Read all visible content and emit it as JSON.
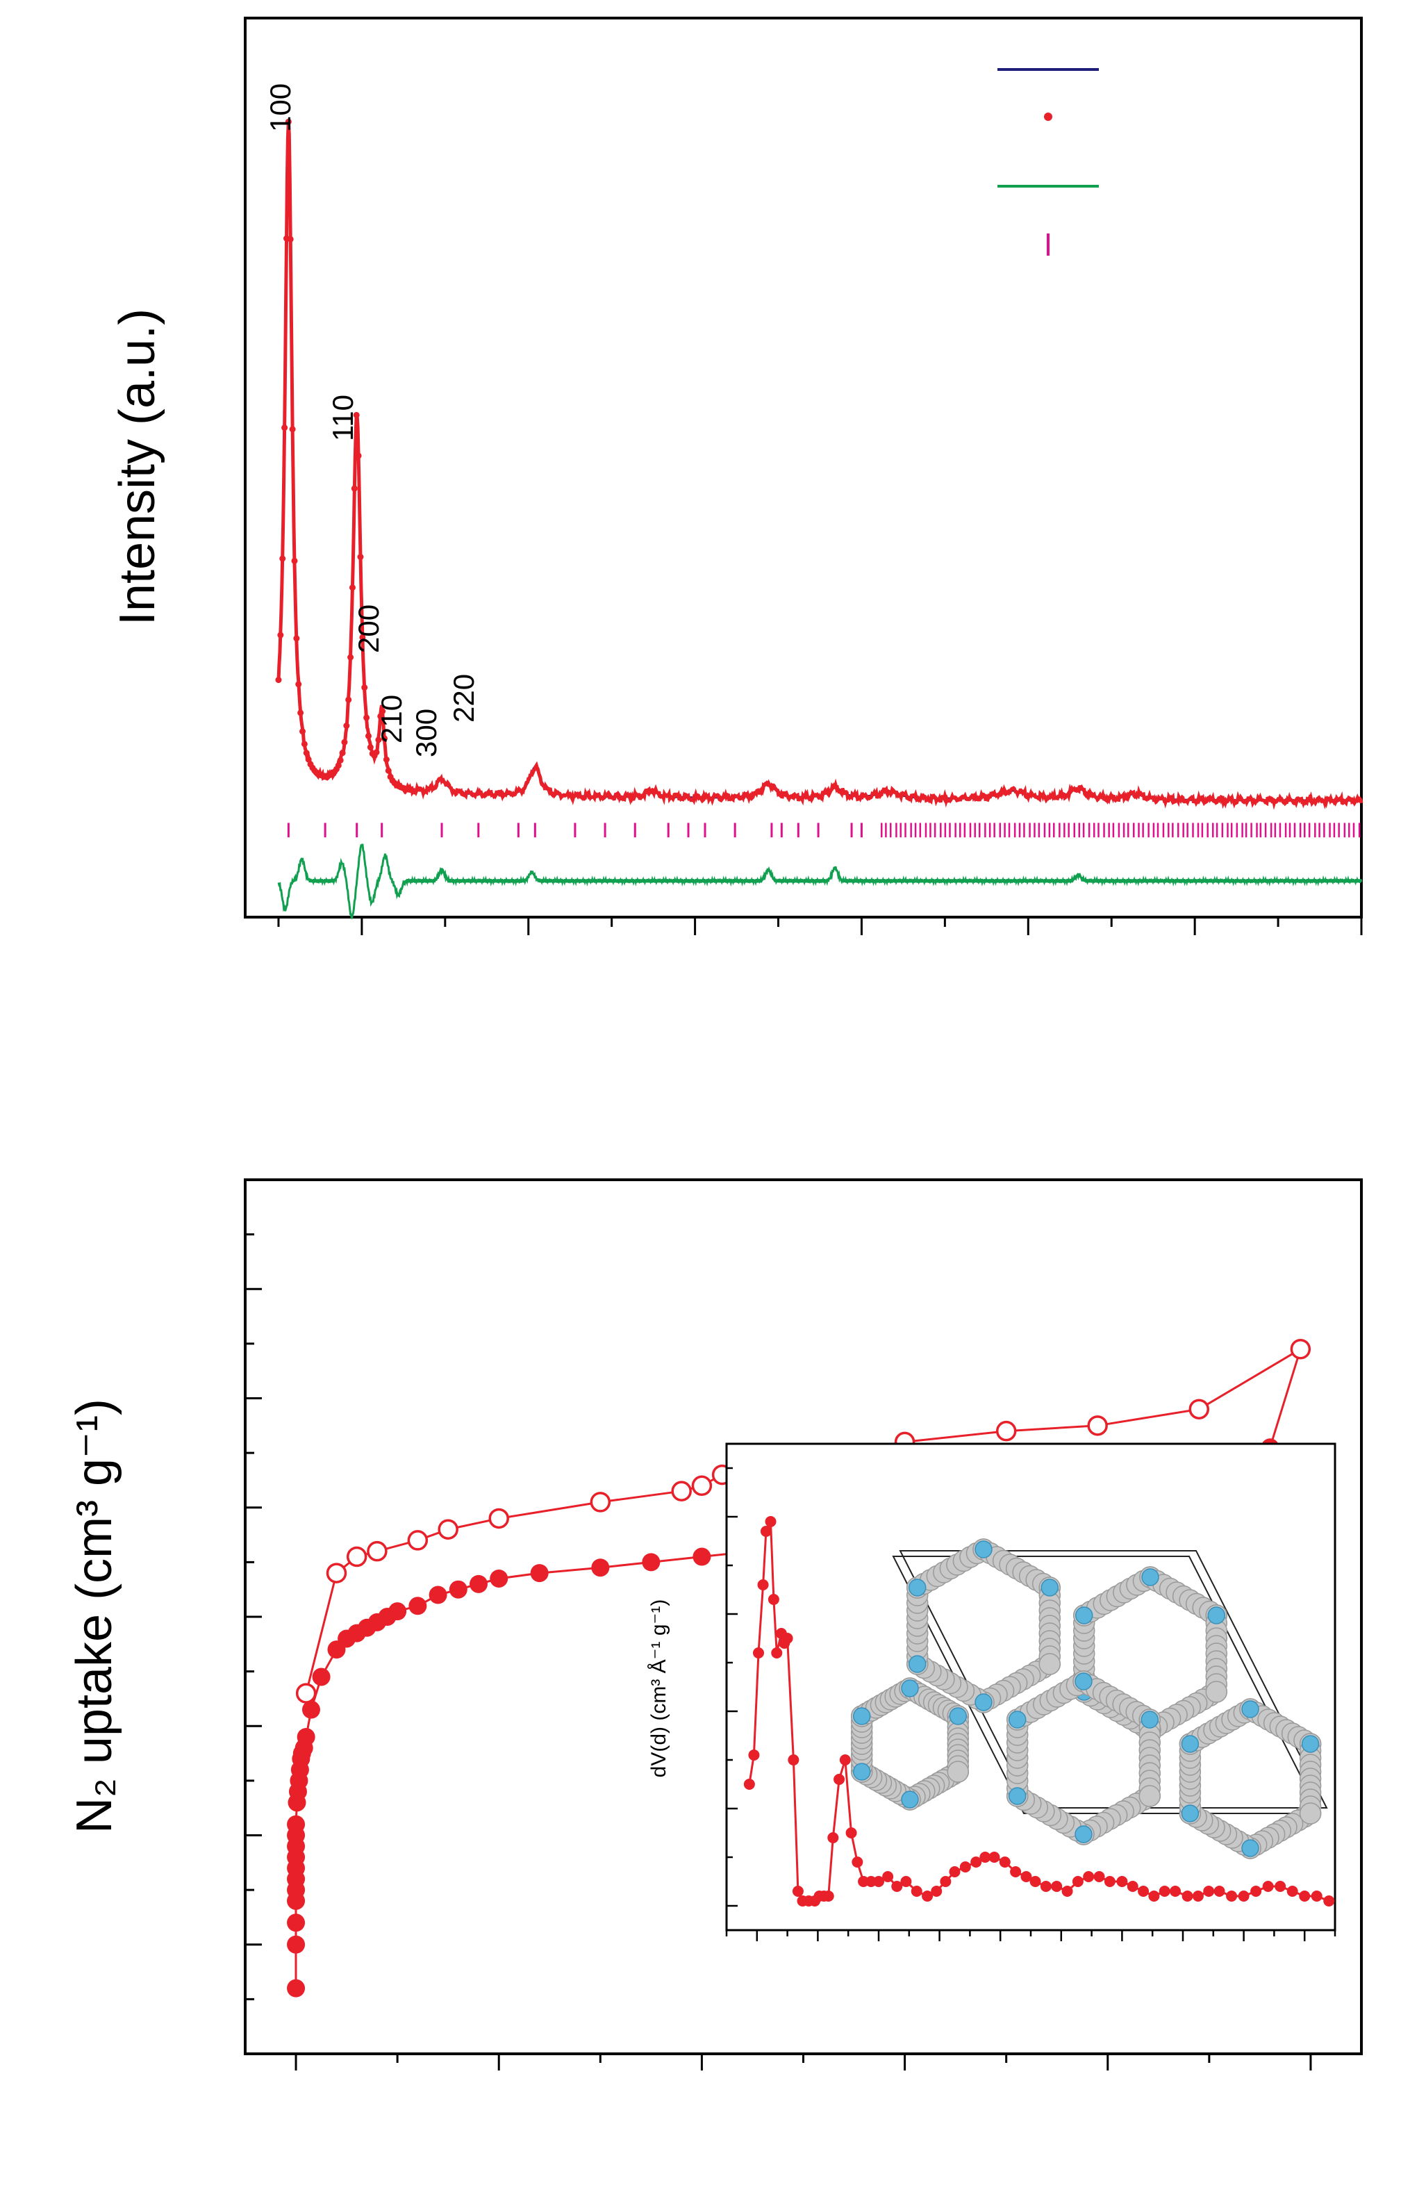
{
  "colors": {
    "calc": "#1e1e78",
    "obs": "#e8202a",
    "diff": "#10a050",
    "bragg": "#e0108c",
    "frame": "#000000",
    "atom": "#c8c8c8",
    "nitrogen": "#5ab4dc"
  },
  "chart_data": [
    {
      "id": "pxrd",
      "type": "line",
      "ylabel": "Intensity (a.u.)",
      "xlim": [
        1.5,
        35
      ],
      "ylim": [
        -0.16,
        1.08
      ],
      "x_ticks_major": [
        5,
        10,
        15,
        20,
        25,
        30,
        35
      ],
      "x_ticks_minor": [
        2.5,
        7.5,
        12.5,
        17.5,
        22.5,
        27.5,
        32.5
      ],
      "legend": {
        "position": "top-right",
        "entries": [
          {
            "style": "line",
            "color": "#1e1e78"
          },
          {
            "style": "dot",
            "color": "#e8202a"
          },
          {
            "style": "line",
            "color": "#10a050"
          },
          {
            "style": "tick",
            "color": "#e0108c"
          }
        ]
      },
      "peak_labels": [
        {
          "text": "100",
          "x": 2.8,
          "y": 1.0
        },
        {
          "text": "110",
          "x": 4.8,
          "y": 0.6
        },
        {
          "text": "200",
          "x": 5.5,
          "y": 0.31
        },
        {
          "text": "210",
          "x": 7.2,
          "y": 0.12
        },
        {
          "text": "300",
          "x": 8.5,
          "y": 0.1
        },
        {
          "text": "220",
          "x": 10.0,
          "y": 0.13
        }
      ],
      "observed_peaks": [
        {
          "x": 2.8,
          "height": 0.92,
          "width": 0.13
        },
        {
          "x": 4.85,
          "height": 0.52,
          "width": 0.14
        },
        {
          "x": 5.6,
          "height": 0.1,
          "width": 0.1
        },
        {
          "x": 7.4,
          "height": 0.02,
          "width": 0.2
        },
        {
          "x": 10.2,
          "height": 0.04,
          "width": 0.2
        },
        {
          "x": 13.7,
          "height": 0.01,
          "width": 0.2
        },
        {
          "x": 17.2,
          "height": 0.02,
          "width": 0.25
        },
        {
          "x": 19.2,
          "height": 0.015,
          "width": 0.25
        },
        {
          "x": 20.8,
          "height": 0.01,
          "width": 0.4
        },
        {
          "x": 24.5,
          "height": 0.012,
          "width": 0.5
        },
        {
          "x": 26.5,
          "height": 0.015,
          "width": 0.3
        },
        {
          "x": 28.2,
          "height": 0.008,
          "width": 0.3
        }
      ],
      "bragg_ticks_x": [
        2.8,
        3.9,
        4.85,
        5.6,
        7.4,
        8.5,
        9.7,
        10.2,
        11.4,
        12.3,
        13.2,
        14.2,
        14.8,
        15.3,
        16.2,
        17.3,
        17.6,
        18.1,
        18.7,
        19.7,
        20.0
      ],
      "bragg_dense_range": [
        20.6,
        35
      ],
      "diff_wiggles": [
        {
          "x": 2.7,
          "amp": -0.04
        },
        {
          "x": 3.2,
          "amp": 0.03
        },
        {
          "x": 4.4,
          "amp": 0.025
        },
        {
          "x": 4.7,
          "amp": -0.05
        },
        {
          "x": 5.0,
          "amp": 0.05
        },
        {
          "x": 5.3,
          "amp": -0.03
        },
        {
          "x": 5.7,
          "amp": 0.035
        },
        {
          "x": 6.1,
          "amp": -0.02
        },
        {
          "x": 7.4,
          "amp": 0.015
        },
        {
          "x": 10.1,
          "amp": 0.012
        },
        {
          "x": 17.2,
          "amp": 0.015
        },
        {
          "x": 19.2,
          "amp": 0.018
        },
        {
          "x": 26.5,
          "amp": 0.008
        }
      ]
    },
    {
      "id": "n2-isotherm",
      "type": "scatter",
      "ylabel": "N₂ uptake (cm³ g⁻¹)",
      "xlim": [
        -0.05,
        1.05
      ],
      "ylim": [
        0,
        800
      ],
      "x_ticks_major": [
        0,
        0.2,
        0.4,
        0.6,
        0.8,
        1.0
      ],
      "x_ticks_minor": [
        0.1,
        0.3,
        0.5,
        0.7,
        0.9
      ],
      "y_ticks_major": [
        100,
        200,
        300,
        400,
        500,
        600,
        700
      ],
      "y_ticks_minor": [
        50,
        150,
        250,
        350,
        450,
        550,
        650,
        750
      ],
      "series": [
        {
          "marker": "filled-circle",
          "x": [
            0.0,
            0.0,
            0.0,
            0.0,
            0.0,
            0.0,
            0.0,
            0.0,
            0.0,
            0.0,
            0.0,
            0.001,
            0.002,
            0.003,
            0.004,
            0.005,
            0.006,
            0.008,
            0.01,
            0.015,
            0.025,
            0.04,
            0.05,
            0.06,
            0.07,
            0.08,
            0.09,
            0.1,
            0.12,
            0.14,
            0.16,
            0.18,
            0.2,
            0.24,
            0.3,
            0.35,
            0.4,
            0.45,
            0.5,
            0.55,
            0.6,
            0.65,
            0.7,
            0.75,
            0.8,
            0.85,
            0.89,
            0.93,
            0.96
          ],
          "y": [
            60,
            100,
            120,
            140,
            150,
            160,
            170,
            180,
            190,
            200,
            210,
            230,
            240,
            250,
            260,
            270,
            275,
            280,
            290,
            315,
            345,
            370,
            380,
            385,
            390,
            395,
            400,
            405,
            410,
            420,
            425,
            430,
            435,
            440,
            445,
            450,
            455,
            460,
            465,
            470,
            475,
            480,
            485,
            490,
            497,
            505,
            515,
            530,
            555
          ]
        },
        {
          "marker": "open-circle",
          "x": [
            0.99,
            0.89,
            0.79,
            0.7,
            0.6,
            0.5,
            0.45,
            0.42,
            0.4,
            0.38,
            0.3,
            0.2,
            0.15,
            0.12,
            0.08,
            0.06,
            0.04,
            0.01
          ],
          "y": [
            645,
            590,
            575,
            570,
            560,
            545,
            535,
            530,
            520,
            515,
            505,
            490,
            480,
            470,
            460,
            455,
            440,
            330
          ]
        }
      ]
    },
    {
      "id": "pore-size-distribution",
      "type": "line",
      "ylabel": "dV(d) (cm³ Å⁻¹ g⁻¹)",
      "xlim": [
        0,
        40
      ],
      "ylim": [
        0,
        1
      ],
      "x_ticks_major": [
        2,
        6,
        10,
        14,
        18,
        22,
        26,
        30,
        34,
        38
      ],
      "x_ticks_minor": [
        0,
        4,
        8,
        12,
        16,
        20,
        24,
        28,
        32,
        36,
        40
      ],
      "y_ticks_major": [
        0.05,
        0.25,
        0.45,
        0.65,
        0.85
      ],
      "y_ticks_minor": [
        0.15,
        0.35,
        0.55,
        0.75,
        0.95
      ],
      "x": [
        1.5,
        1.8,
        2.1,
        2.4,
        2.6,
        2.9,
        3.1,
        3.3,
        3.6,
        3.8,
        4.0,
        4.4,
        4.7,
        5.0,
        5.4,
        5.8,
        6.1,
        6.4,
        6.7,
        7.0,
        7.4,
        7.8,
        8.2,
        8.6,
        9.0,
        9.5,
        10.0,
        10.6,
        11.2,
        11.8,
        12.5,
        13.2,
        13.8,
        14.4,
        15.0,
        15.7,
        16.4,
        17.0,
        17.6,
        18.3,
        19.0,
        19.7,
        20.3,
        21.0,
        21.7,
        22.4,
        23.1,
        23.8,
        24.5,
        25.2,
        26.0,
        26.7,
        27.4,
        28.1,
        28.8,
        29.5,
        30.3,
        31.0,
        31.7,
        32.4,
        33.2,
        34.0,
        34.8,
        35.6,
        36.4,
        37.2,
        38.0,
        38.8,
        39.6
      ],
      "y": [
        0.3,
        0.36,
        0.57,
        0.71,
        0.82,
        0.84,
        0.68,
        0.57,
        0.61,
        0.59,
        0.6,
        0.35,
        0.08,
        0.06,
        0.06,
        0.06,
        0.07,
        0.07,
        0.07,
        0.19,
        0.31,
        0.35,
        0.2,
        0.14,
        0.1,
        0.1,
        0.1,
        0.11,
        0.09,
        0.1,
        0.08,
        0.07,
        0.08,
        0.1,
        0.12,
        0.13,
        0.14,
        0.15,
        0.15,
        0.14,
        0.12,
        0.11,
        0.1,
        0.09,
        0.09,
        0.08,
        0.1,
        0.11,
        0.11,
        0.1,
        0.1,
        0.09,
        0.08,
        0.07,
        0.08,
        0.08,
        0.07,
        0.07,
        0.08,
        0.08,
        0.07,
        0.07,
        0.08,
        0.09,
        0.09,
        0.08,
        0.07,
        0.07,
        0.06
      ]
    }
  ]
}
